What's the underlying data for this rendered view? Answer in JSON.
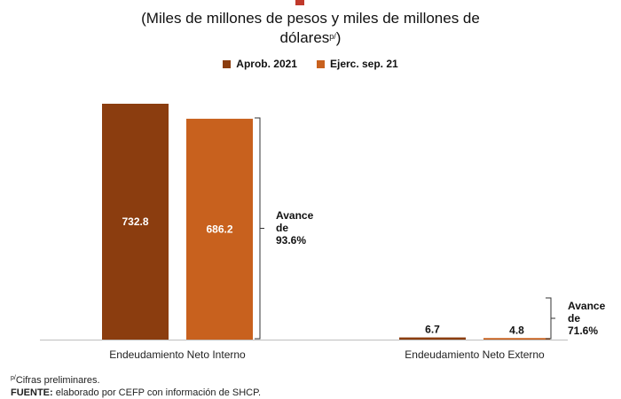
{
  "colors": {
    "aprob": "#8b3d0f",
    "ejerc": "#c8611e",
    "baseline": "#bfbfbf",
    "bracket": "#333333",
    "accent": "#c0392b"
  },
  "chart_data": {
    "type": "bar",
    "subtitle_line1": "(Miles de millones de pesos y miles de millones de",
    "subtitle_line2": "dólares",
    "subtitle_sup": "p/",
    "subtitle_close": ")",
    "categories": [
      "Endeudamiento Neto Interno",
      "Endeudamiento Neto Externo"
    ],
    "series": [
      {
        "name": "Aprob. 2021",
        "values": [
          732.8,
          6.7
        ]
      },
      {
        "name": "Ejerc. sep. 21",
        "values": [
          686.2,
          4.8
        ]
      }
    ],
    "value_labels": [
      [
        "732.8",
        "6.7"
      ],
      [
        "686.2",
        "4.8"
      ]
    ],
    "ylim": [
      0,
      732.8
    ],
    "grid": false,
    "legend": "top-center",
    "annotations": [
      {
        "lines": [
          "Avance",
          "de",
          "93.6%"
        ],
        "category": 0
      },
      {
        "lines": [
          "Avance",
          "de",
          "71.6%"
        ],
        "category": 1
      }
    ]
  },
  "footnotes": {
    "line1_sup": "p/",
    "line1_text": "Cifras preliminares.",
    "line2_bold": "FUENTE:",
    "line2_text": " elaborado por CEFP con información de SHCP."
  }
}
